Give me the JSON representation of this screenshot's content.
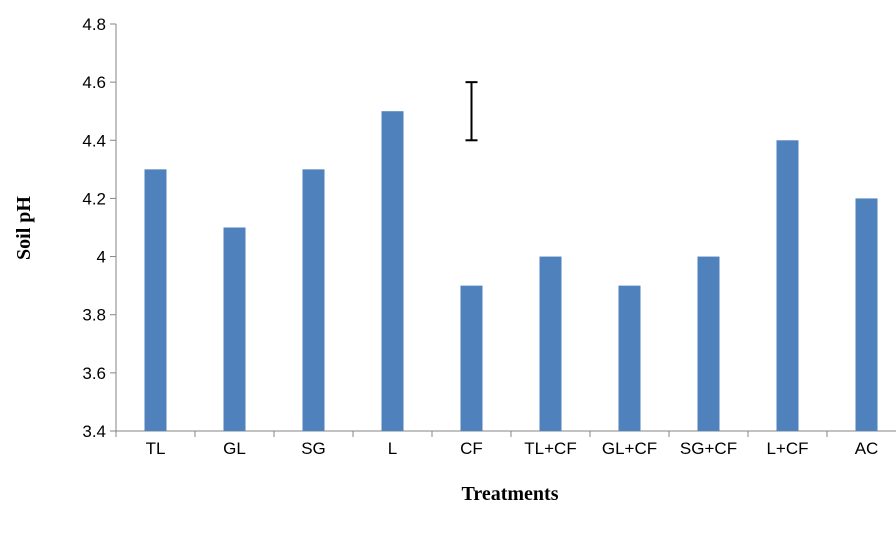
{
  "chart_data": {
    "type": "bar",
    "title": "",
    "xlabel": "Treatments",
    "ylabel": "Soil pH",
    "categories": [
      "TL",
      "GL",
      "SG",
      "L",
      "CF",
      "TL+CF",
      "GL+CF",
      "SG+CF",
      "L+CF",
      "AC"
    ],
    "series": [
      {
        "values": [
          4.3,
          4.1,
          4.3,
          4.5,
          3.9,
          4.0,
          3.9,
          4.0,
          4.4,
          4.2
        ]
      }
    ],
    "ylim": [
      3.4,
      4.8
    ],
    "yticks": [
      "3.4",
      "3.6",
      "3.8",
      "4",
      "4.2",
      "4.4",
      "4.6",
      "4.8"
    ],
    "error_bar": {
      "low": 4.4,
      "high": 4.6
    },
    "grid": false,
    "legend": "none",
    "bar_color": "#4f81bd",
    "axis_color": "#868686"
  }
}
